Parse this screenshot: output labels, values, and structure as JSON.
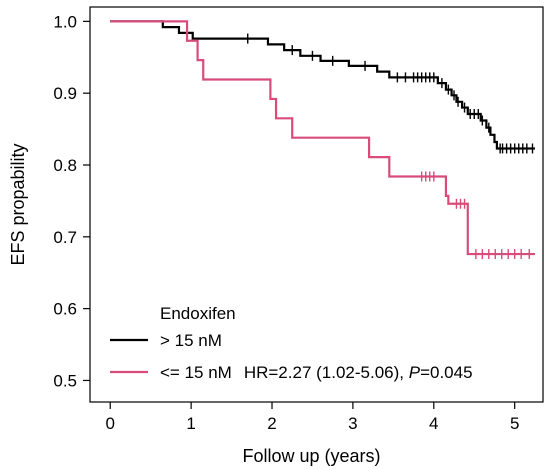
{
  "chart_data": {
    "type": "line",
    "subtype": "kaplan-meier step",
    "xlabel": "Follow up (years)",
    "ylabel": "EFS propability",
    "xlim": [
      -0.25,
      5.35
    ],
    "ylim": [
      0.47,
      1.02
    ],
    "xticks": [
      0,
      1,
      2,
      3,
      4,
      5
    ],
    "yticks": [
      0.5,
      0.6,
      0.7,
      0.8,
      0.9,
      1.0
    ],
    "xtick_labels": [
      "0",
      "1",
      "2",
      "3",
      "4",
      "5"
    ],
    "ytick_labels": [
      "0.5",
      "0.6",
      "0.7",
      "0.8",
      "0.9",
      "1.0"
    ],
    "grid": false,
    "legend": {
      "title": "Endoxifen",
      "placement": "bottom-left",
      "annotation": "HR=2.27 (1.02-5.06), ",
      "p_symbol": "P",
      "p_value": "=0.045"
    },
    "series": [
      {
        "name": "> 15 nM",
        "color": "#000000",
        "steps": [
          [
            0,
            1.0
          ],
          [
            0.65,
            0.992
          ],
          [
            0.85,
            0.984
          ],
          [
            1.02,
            0.976
          ],
          [
            1.95,
            0.968
          ],
          [
            2.15,
            0.96
          ],
          [
            2.35,
            0.952
          ],
          [
            2.6,
            0.945
          ],
          [
            2.95,
            0.938
          ],
          [
            3.3,
            0.93
          ],
          [
            3.45,
            0.922
          ],
          [
            4.05,
            0.914
          ],
          [
            4.15,
            0.905
          ],
          [
            4.22,
            0.897
          ],
          [
            4.28,
            0.888
          ],
          [
            4.35,
            0.88
          ],
          [
            4.42,
            0.871
          ],
          [
            4.58,
            0.862
          ],
          [
            4.65,
            0.852
          ],
          [
            4.7,
            0.842
          ],
          [
            4.75,
            0.832
          ],
          [
            4.78,
            0.823
          ],
          [
            5.25,
            0.823
          ]
        ],
        "censor_times": [
          1.7,
          2.25,
          2.5,
          2.75,
          3.15,
          3.55,
          3.65,
          3.75,
          3.8,
          3.85,
          3.9,
          3.95,
          4.0,
          4.1,
          4.18,
          4.25,
          4.3,
          4.38,
          4.45,
          4.5,
          4.55,
          4.6,
          4.68,
          4.82,
          4.85,
          4.9,
          4.95,
          5.0,
          5.05,
          5.1,
          5.15,
          5.22
        ]
      },
      {
        "name": "<= 15 nM",
        "color": "#d94c7a",
        "steps": [
          [
            0,
            1.0
          ],
          [
            0.95,
            0.973
          ],
          [
            1.08,
            0.946
          ],
          [
            1.15,
            0.919
          ],
          [
            1.98,
            0.892
          ],
          [
            2.05,
            0.865
          ],
          [
            2.25,
            0.838
          ],
          [
            3.2,
            0.811
          ],
          [
            3.45,
            0.784
          ],
          [
            4.15,
            0.757
          ],
          [
            4.18,
            0.746
          ],
          [
            4.42,
            0.676
          ],
          [
            5.25,
            0.676
          ]
        ],
        "censor_times": [
          3.85,
          3.9,
          3.95,
          4.0,
          4.28,
          4.33,
          4.38,
          4.52,
          4.6,
          4.68,
          4.76,
          4.84,
          4.92,
          5.0,
          5.08,
          5.18
        ]
      }
    ]
  }
}
